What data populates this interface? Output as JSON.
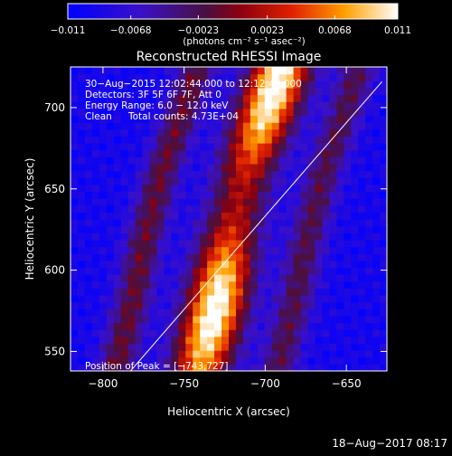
{
  "colorbar": {
    "ticks": [
      -0.011,
      -0.0068,
      -0.0023,
      0.0023,
      0.0068,
      0.011
    ],
    "tick_labels": [
      "−0.011",
      "−0.0068",
      "−0.0023",
      "0.0023",
      "0.0068",
      "0.011"
    ],
    "units_label": "(photons cm⁻² s⁻¹ asec⁻²)",
    "range": [
      -0.011,
      0.011
    ]
  },
  "chart_data": {
    "type": "heatmap",
    "title": "Reconstructed RHESSI Image",
    "xlabel": "Heliocentric X (arcsec)",
    "ylabel": "Heliocentric Y (arcsec)",
    "xlim": [
      -820,
      -625
    ],
    "ylim": [
      538,
      725
    ],
    "x_ticks": [
      -800,
      -750,
      -700,
      -650
    ],
    "x_tick_labels": [
      "−800",
      "−750",
      "−700",
      "−650"
    ],
    "y_ticks": [
      550,
      600,
      650,
      700
    ],
    "y_tick_labels": [
      "550",
      "600",
      "650",
      "700"
    ],
    "annotations": {
      "line1": "30−Aug−2015 12:02:44.000 to 12:12:44.000",
      "line2": "Detectors: 3F 5F 6F 7F, Att 0",
      "line3": "Energy Range: 6.0 − 12.0 keV",
      "line4a": "Clean",
      "line4b": "Total counts: 4.73E+04",
      "peak": "Position of Peak = [−743,727]"
    },
    "overlay_line": {
      "from": [
        -783,
        538
      ],
      "to": [
        -628,
        716
      ]
    },
    "source_ridge": [
      [
        -740,
        540
      ],
      [
        -730,
        580
      ],
      [
        -722,
        620
      ],
      [
        -712,
        660
      ],
      [
        -700,
        695
      ],
      [
        -690,
        725
      ]
    ],
    "peak_position": [
      -743,
      727
    ]
  },
  "timestamp": "18−Aug−2017 08:17"
}
